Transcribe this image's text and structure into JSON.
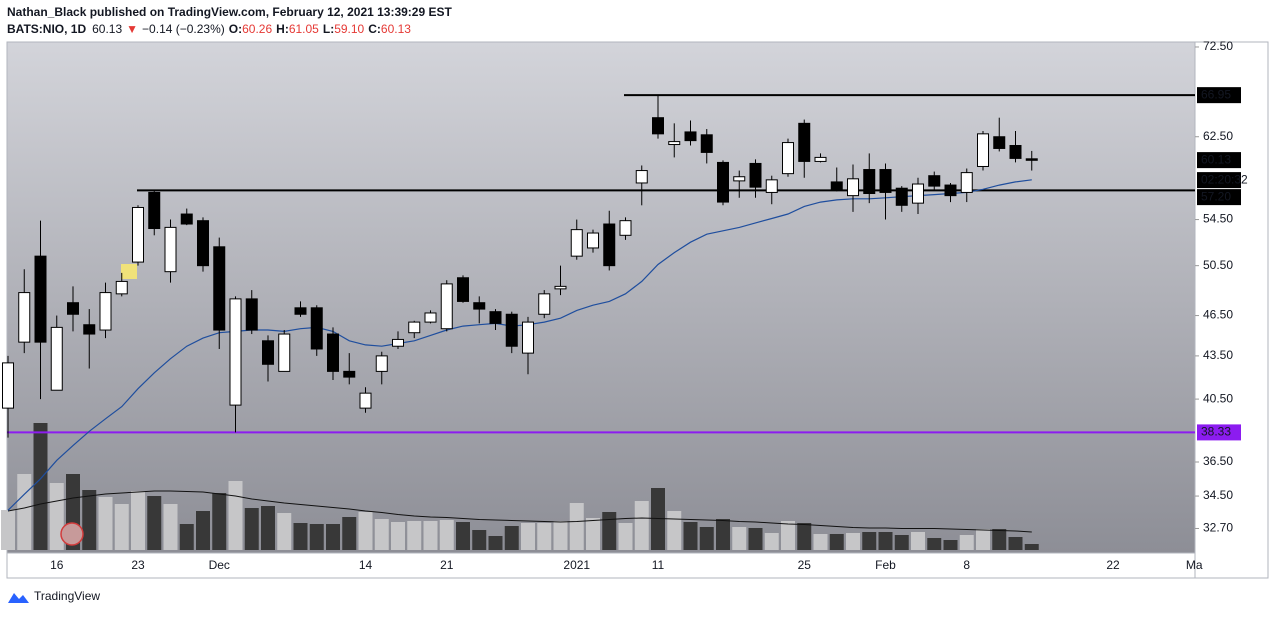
{
  "header": {
    "author_line": "Nathan_Black published on TradingView.com, February 12, 2021 13:39:29 EST",
    "symbol": "BATS:NIO, 1D",
    "price": "60.13",
    "arrow": "▼",
    "change": "−0.14 (−0.23%)",
    "ohlc": [
      {
        "key": "O:",
        "value": "60.26"
      },
      {
        "key": "H:",
        "value": "61.05"
      },
      {
        "key": "L:",
        "value": "59.10"
      },
      {
        "key": "C:",
        "value": "60.13"
      }
    ]
  },
  "footer": {
    "brand": "TradingView"
  },
  "chart_data": {
    "type": "candlestick",
    "log_scale": true,
    "grid": false,
    "up_color": "#ffffff",
    "down_color": "#000000",
    "categories": [
      null,
      null,
      null,
      "16",
      null,
      null,
      null,
      null,
      "23",
      null,
      null,
      null,
      null,
      "Dec",
      null,
      null,
      null,
      null,
      null,
      null,
      null,
      null,
      "14",
      null,
      null,
      null,
      null,
      "21",
      null,
      null,
      null,
      null,
      null,
      null,
      null,
      "2021",
      null,
      null,
      null,
      null,
      "11",
      null,
      null,
      null,
      null,
      null,
      null,
      null,
      null,
      "25",
      null,
      null,
      null,
      null,
      "Feb",
      null,
      null,
      null,
      null,
      "8",
      null,
      null,
      null,
      null,
      null,
      null,
      null,
      null,
      "22",
      null,
      null,
      null,
      null,
      "Ma"
    ],
    "open": [
      39.9,
      44.5,
      51.3,
      41.1,
      47.5,
      45.8,
      45.4,
      48.2,
      50.8,
      57.0,
      50.0,
      55.0,
      54.4,
      52.1,
      40.1,
      47.8,
      44.6,
      42.4,
      47.1,
      47.1,
      45.1,
      42.4,
      39.9,
      42.4,
      44.2,
      45.2,
      46.0,
      45.5,
      49.5,
      47.5,
      46.8,
      46.6,
      43.7,
      46.6,
      48.6,
      51.3,
      52.0,
      54.1,
      53.1,
      57.9,
      64.5,
      61.7,
      63.0,
      62.7,
      59.9,
      58.1,
      59.8,
      57.0,
      58.8,
      63.9,
      60.0,
      58.0,
      56.7,
      59.2,
      59.2,
      57.4,
      56.0,
      58.6,
      57.7,
      57.0,
      59.5,
      62.5,
      61.6,
      60.26,
      null,
      null,
      null,
      null,
      null,
      null,
      null,
      null,
      null,
      null
    ],
    "high": [
      43.5,
      50.2,
      54.4,
      46.5,
      48.8,
      47.0,
      49.1,
      49.9,
      55.8,
      57.2,
      54.5,
      55.5,
      54.7,
      52.9,
      48.0,
      48.5,
      45.0,
      45.4,
      47.6,
      47.3,
      45.6,
      43.7,
      41.3,
      43.8,
      45.3,
      46.1,
      46.9,
      49.3,
      49.7,
      48.0,
      47.0,
      46.8,
      46.4,
      48.5,
      50.5,
      54.5,
      53.6,
      55.3,
      54.7,
      59.6,
      66.95,
      63.9,
      64.2,
      63.3,
      60.1,
      59.1,
      60.2,
      58.6,
      62.3,
      64.3,
      60.8,
      59.4,
      59.7,
      60.8,
      59.8,
      57.6,
      58.4,
      59.0,
      57.9,
      59.3,
      63.1,
      64.5,
      63.1,
      61.05,
      null,
      null,
      null,
      null,
      null,
      null,
      null,
      null,
      null,
      null
    ],
    "low": [
      38.0,
      43.7,
      40.5,
      41.1,
      45.3,
      42.6,
      44.8,
      48.0,
      50.5,
      53.1,
      49.1,
      54.0,
      50.0,
      44.0,
      38.33,
      45.1,
      41.7,
      42.4,
      46.4,
      43.5,
      41.8,
      41.5,
      39.6,
      41.5,
      44.0,
      44.8,
      45.9,
      45.3,
      47.5,
      45.9,
      45.4,
      43.7,
      42.2,
      46.3,
      48.1,
      51.0,
      51.6,
      50.1,
      52.7,
      55.8,
      62.3,
      60.4,
      61.6,
      59.8,
      55.8,
      56.5,
      56.5,
      55.9,
      58.5,
      58.4,
      59.9,
      57.1,
      55.2,
      56.0,
      54.5,
      55.2,
      55.0,
      57.2,
      56.1,
      56.1,
      59.1,
      61.0,
      59.9,
      59.1,
      null,
      null,
      null,
      null,
      null,
      null,
      null,
      null,
      null,
      null
    ],
    "close": [
      43.0,
      48.3,
      44.5,
      45.6,
      46.6,
      45.1,
      48.3,
      49.2,
      55.6,
      53.7,
      53.8,
      54.1,
      50.5,
      45.4,
      47.8,
      45.4,
      42.9,
      45.1,
      46.6,
      44.0,
      42.4,
      42.0,
      40.9,
      43.5,
      44.7,
      46.0,
      46.7,
      49.0,
      47.6,
      47.0,
      45.9,
      44.2,
      46.0,
      48.2,
      48.8,
      53.6,
      53.3,
      50.5,
      54.4,
      59.1,
      62.8,
      62.0,
      62.1,
      60.9,
      56.1,
      58.5,
      57.5,
      58.2,
      61.9,
      60.0,
      60.4,
      57.3,
      58.3,
      56.9,
      57.0,
      55.8,
      57.8,
      57.6,
      56.7,
      58.9,
      62.8,
      61.3,
      60.3,
      60.13,
      null,
      null,
      null,
      null,
      null,
      null,
      null,
      null,
      null,
      null
    ],
    "ma": {
      "color": "#1f4e9e",
      "values": [
        33.7,
        34.6,
        35.5,
        36.6,
        37.5,
        38.4,
        39.2,
        40.0,
        41.2,
        42.3,
        43.3,
        44.2,
        44.8,
        45.2,
        45.3,
        45.4,
        45.4,
        45.3,
        45.5,
        45.6,
        45.3,
        44.6,
        44.3,
        44.2,
        44.4,
        44.6,
        45.0,
        45.4,
        45.7,
        45.8,
        45.9,
        45.7,
        45.8,
        46.0,
        46.3,
        46.9,
        47.3,
        47.6,
        48.2,
        49.2,
        50.6,
        51.6,
        52.5,
        53.2,
        53.5,
        53.8,
        54.2,
        54.6,
        55.0,
        55.7,
        56.1,
        56.3,
        56.4,
        56.4,
        56.5,
        56.6,
        56.7,
        56.8,
        56.9,
        57.0,
        57.3,
        57.7,
        58.0,
        58.2,
        null,
        null,
        null,
        null,
        null,
        null,
        null,
        null,
        null,
        null
      ]
    },
    "volume": {
      "up_color": "#c6c6c8",
      "down_color": "#383838",
      "ma_color": "#111111",
      "ylim": [
        0,
        300
      ],
      "values": [
        80,
        152,
        254,
        134,
        152,
        120,
        106,
        92,
        118,
        108,
        92,
        52,
        78,
        114,
        138,
        84,
        88,
        74,
        54,
        52,
        52,
        66,
        76,
        62,
        56,
        58,
        58,
        60,
        56,
        40,
        28,
        48,
        54,
        54,
        58,
        94,
        64,
        76,
        54,
        98,
        124,
        78,
        56,
        46,
        62,
        46,
        44,
        34,
        58,
        54,
        32,
        32,
        34,
        36,
        36,
        30,
        36,
        24,
        20,
        30,
        42,
        42,
        26,
        12,
        null,
        null,
        null,
        null,
        null,
        null,
        null,
        null,
        null,
        null
      ],
      "ma_values": [
        78,
        84,
        92,
        98,
        104,
        108,
        112,
        114,
        116,
        118,
        118,
        117,
        116,
        112,
        108,
        102,
        98,
        94,
        91,
        88,
        85,
        82,
        78,
        75,
        71,
        68,
        66,
        65,
        63,
        61,
        60,
        59,
        58,
        57,
        56,
        57,
        59,
        61,
        63,
        64,
        63,
        62,
        61,
        60,
        59,
        57,
        56,
        54,
        52,
        51,
        49,
        47,
        45,
        44,
        44,
        43,
        43,
        43,
        42,
        41,
        40,
        39,
        38,
        36,
        null,
        null,
        null,
        null,
        null,
        null,
        null,
        null,
        null,
        null
      ]
    },
    "ylim": [
      31.4,
      73.1
    ],
    "yticks": [
      {
        "value": 72.5,
        "label": "72.50"
      },
      {
        "value": 62.5,
        "label": "62.50"
      },
      {
        "value": 54.5,
        "label": "54.50"
      },
      {
        "value": 50.5,
        "label": "50.50"
      },
      {
        "value": 46.5,
        "label": "46.50"
      },
      {
        "value": 43.5,
        "label": "43.50"
      },
      {
        "value": 40.5,
        "label": "40.50"
      },
      {
        "value": 36.5,
        "label": "36.50"
      },
      {
        "value": 34.5,
        "label": "34.50"
      },
      {
        "value": 32.7,
        "label": "32.70"
      }
    ],
    "levels": [
      {
        "value": 66.95,
        "label": "66.95",
        "color": "#000000"
      },
      {
        "value": 57.2,
        "label": "57.20",
        "color": "#000000"
      },
      {
        "value": 38.33,
        "label": "38.33",
        "color": "#8c1cf0"
      }
    ],
    "last_price": {
      "label": "60.13",
      "countdown": "02:20:32"
    }
  }
}
